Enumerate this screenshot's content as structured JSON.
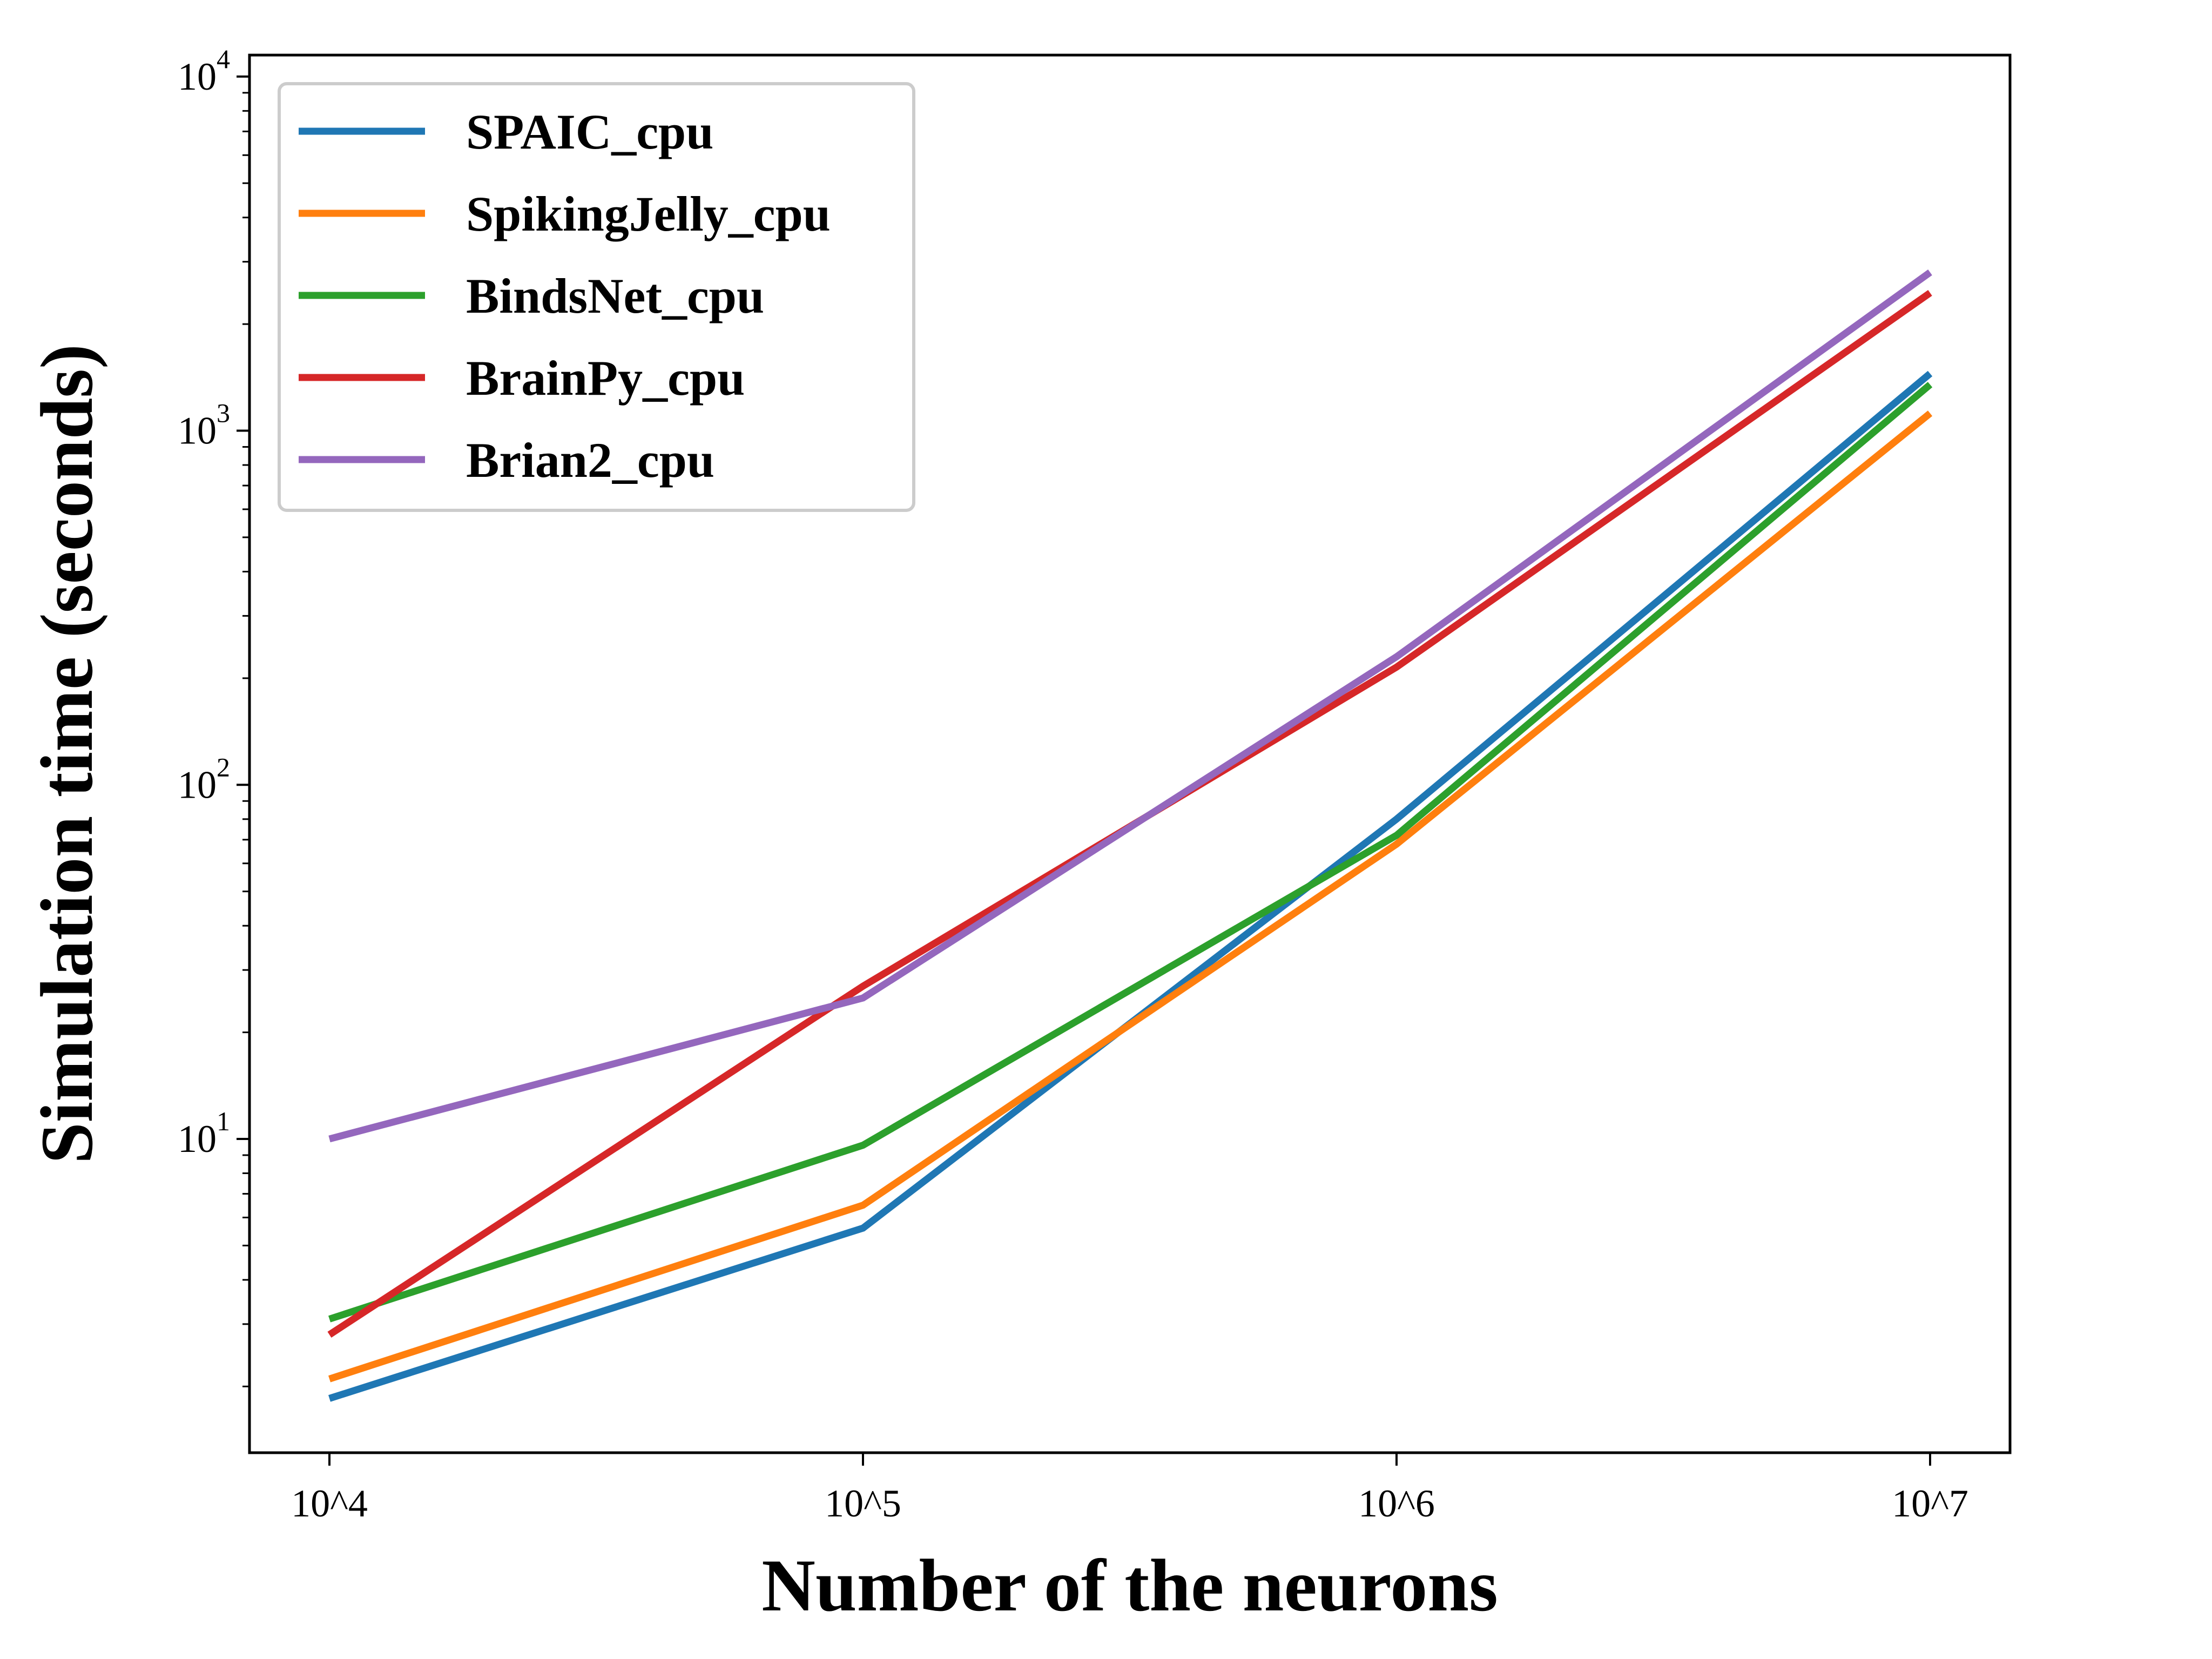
{
  "chart_data": {
    "type": "line",
    "title": "",
    "xlabel": "Number of the neurons",
    "ylabel": "Simulation time (seconds)",
    "y_scale": "log",
    "ylim": [
      1.3,
      11500
    ],
    "x": [
      10000,
      100000,
      1000000,
      10000000
    ],
    "x_tick_labels": [
      "10^4",
      "10^5",
      "10^6",
      "10^7"
    ],
    "y_ticks": [
      {
        "base": "10",
        "exp": "1"
      },
      {
        "base": "10",
        "exp": "2"
      },
      {
        "base": "10",
        "exp": "3"
      },
      {
        "base": "10",
        "exp": "4"
      }
    ],
    "grid": false,
    "legend_position": "top-left",
    "series": [
      {
        "name": "SPAIC_cpu",
        "color": "#1f77b4",
        "values": [
          1.85,
          5.6,
          80,
          1450
        ]
      },
      {
        "name": "SpikingJelly_cpu",
        "color": "#ff7f0e",
        "values": [
          2.1,
          6.5,
          68,
          1120
        ]
      },
      {
        "name": "BindsNet_cpu",
        "color": "#2ca02c",
        "values": [
          3.1,
          9.6,
          72,
          1350
        ]
      },
      {
        "name": "BrainPy_cpu",
        "color": "#d62728",
        "values": [
          2.8,
          27,
          215,
          2450
        ]
      },
      {
        "name": "Brian2_cpu",
        "color": "#9467bd",
        "values": [
          10,
          25,
          230,
          2800
        ]
      }
    ]
  }
}
